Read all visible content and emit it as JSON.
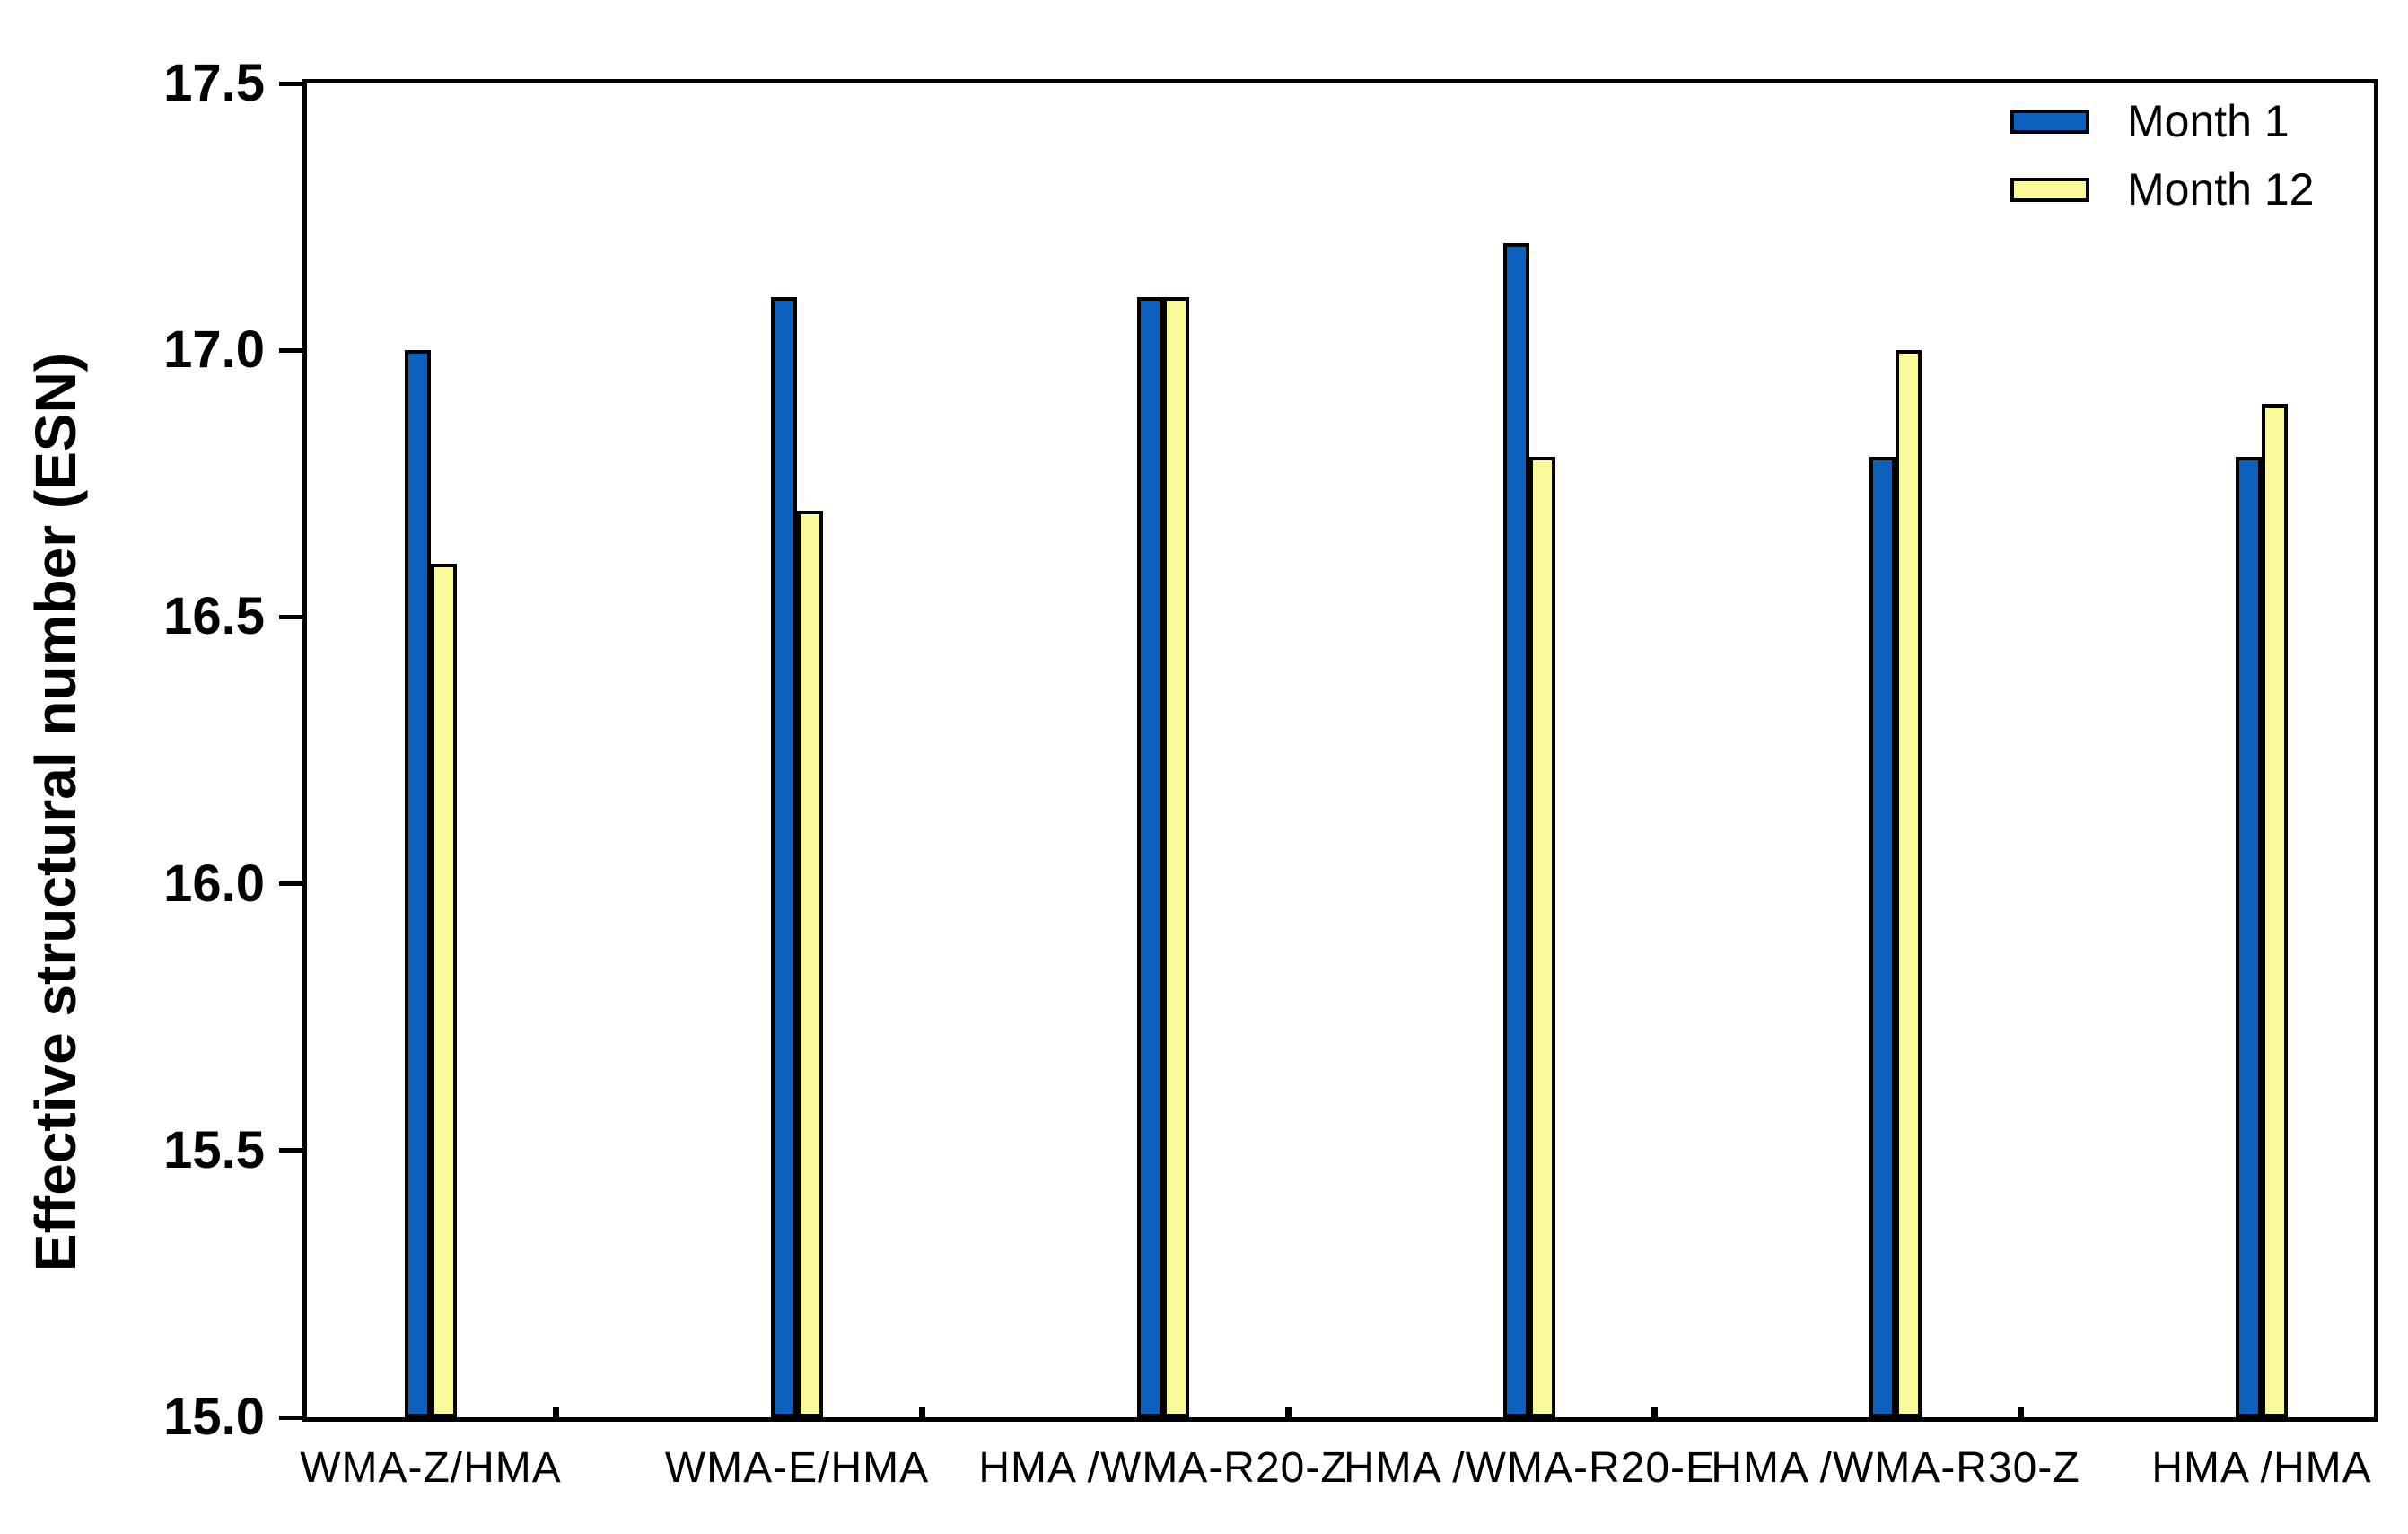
{
  "chart_data": {
    "type": "bar",
    "title": "",
    "xlabel": "",
    "ylabel": "Effective structural number (ESN)",
    "categories": [
      "WMA-Z/HMA",
      "WMA-E/HMA",
      "HMA /WMA-R20-Z",
      "HMA /WMA-R20-E",
      "HMA /WMA-R30-Z",
      "HMA /HMA"
    ],
    "series": [
      {
        "name": "Month 1",
        "color": "#0B61BD",
        "values": [
          17.0,
          17.1,
          17.1,
          17.2,
          16.8,
          16.8
        ]
      },
      {
        "name": "Month 12",
        "color": "#FAFA9B",
        "values": [
          16.6,
          16.7,
          17.1,
          16.8,
          17.0,
          16.9
        ]
      }
    ],
    "ylim": [
      15.0,
      17.5
    ],
    "yticks": [
      17.5,
      17.0,
      16.5,
      16.0,
      15.5,
      15.0
    ],
    "ytick_labels": [
      "17.5",
      "17.0",
      "16.5",
      "16.0",
      "15.5",
      "15.0"
    ],
    "grid": false,
    "legend_position": "top-right",
    "bar_outline_color": "#000000",
    "axis_color": "#000000",
    "background_color": "#FFFFFF"
  },
  "legend": {
    "items": [
      {
        "label": "Month 1",
        "color": "#0B61BD"
      },
      {
        "label": "Month 12",
        "color": "#FAFA9B"
      }
    ]
  }
}
